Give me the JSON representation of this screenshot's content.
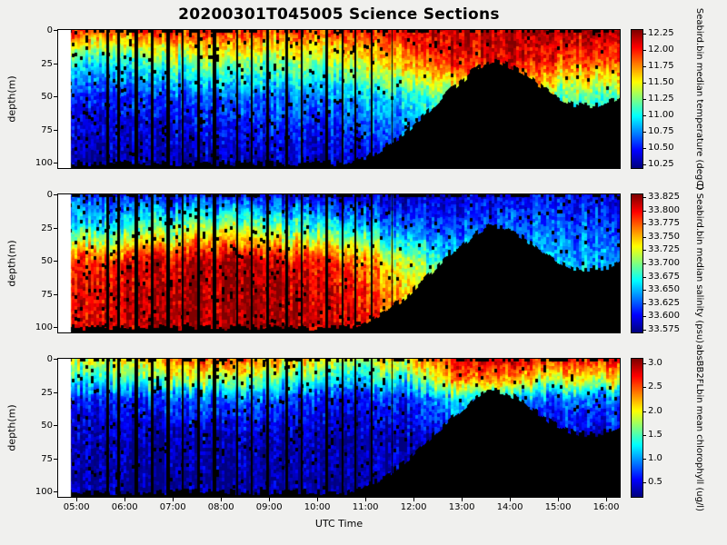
{
  "title": "20200301T045005 Science Sections",
  "axes": {
    "xlabel": "UTC Time",
    "ylabel": "depth(m)",
    "x_ticks": [
      "05:00",
      "06:00",
      "07:00",
      "08:00",
      "09:00",
      "10:00",
      "11:00",
      "12:00",
      "13:00",
      "14:00",
      "15:00",
      "16:00"
    ],
    "x_tick_hours": [
      5,
      6,
      7,
      8,
      9,
      10,
      11,
      12,
      13,
      14,
      15,
      16
    ],
    "y_ticks": [
      "0",
      "25",
      "50",
      "75",
      "100"
    ],
    "t_min": 4.6,
    "t_max": 16.3,
    "t_data_start": 4.85,
    "depth_max": 104
  },
  "colors": {
    "background": "#f0f0ee",
    "mask": "#000000",
    "frame": "#000000"
  },
  "chart_data": [
    {
      "type": "heatmap",
      "name": "temperature",
      "colorbar_label": "Seabird.bin median temperature (degC)",
      "colorbar_ticks": [
        "12.25",
        "12.00",
        "11.75",
        "11.50",
        "11.25",
        "11.00",
        "10.75",
        "10.50",
        "10.25"
      ],
      "units": "degC",
      "vmin": 10.2,
      "vmax": 12.3,
      "x_hours": [
        5,
        6,
        7,
        8,
        9,
        10,
        11,
        12,
        13,
        14,
        15,
        16
      ],
      "depths": [
        0,
        25,
        50,
        75,
        100
      ],
      "values": [
        [
          11.9,
          11.9,
          12.0,
          12.0,
          11.9,
          12.0,
          12.0,
          12.1,
          12.2,
          12.2,
          12.2,
          12.2
        ],
        [
          10.9,
          11.0,
          11.2,
          11.3,
          11.2,
          11.3,
          11.5,
          11.7,
          12.0,
          12.1,
          11.9,
          11.8
        ],
        [
          10.5,
          10.55,
          10.6,
          10.7,
          10.7,
          10.75,
          10.9,
          11.0,
          11.2,
          11.3,
          11.2,
          11.1
        ],
        [
          10.35,
          10.4,
          10.4,
          10.45,
          10.5,
          10.5,
          10.6,
          10.7,
          10.8,
          10.8,
          10.8,
          10.8
        ],
        [
          10.25,
          10.3,
          10.3,
          10.3,
          10.35,
          10.35,
          10.4,
          10.5,
          10.6,
          10.6,
          10.6,
          10.6
        ]
      ]
    },
    {
      "type": "heatmap",
      "name": "salinity",
      "colorbar_label": "D Seabird.bin median salinity (psu)",
      "colorbar_ticks": [
        "33.825",
        "33.800",
        "33.775",
        "33.750",
        "33.725",
        "33.700",
        "33.675",
        "33.650",
        "33.625",
        "33.600",
        "33.575"
      ],
      "units": "psu",
      "vmin": 33.57,
      "vmax": 33.83,
      "x_hours": [
        5,
        6,
        7,
        8,
        9,
        10,
        11,
        12,
        13,
        14,
        15,
        16
      ],
      "depths": [
        0,
        25,
        50,
        75,
        100
      ],
      "values": [
        [
          33.62,
          33.61,
          33.6,
          33.6,
          33.6,
          33.59,
          33.59,
          33.58,
          33.59,
          33.6,
          33.6,
          33.6
        ],
        [
          33.66,
          33.68,
          33.7,
          33.72,
          33.7,
          33.68,
          33.65,
          33.62,
          33.62,
          33.63,
          33.63,
          33.62
        ],
        [
          33.78,
          33.8,
          33.81,
          33.82,
          33.81,
          33.8,
          33.76,
          33.7,
          33.66,
          33.66,
          33.65,
          33.64
        ],
        [
          33.8,
          33.81,
          33.82,
          33.82,
          33.82,
          33.81,
          33.79,
          33.74,
          33.7,
          33.68,
          33.67,
          33.66
        ],
        [
          33.8,
          33.81,
          33.82,
          33.82,
          33.82,
          33.81,
          33.8,
          33.76,
          33.72,
          33.7,
          33.68,
          33.67
        ]
      ]
    },
    {
      "type": "heatmap",
      "name": "chlorophyll",
      "colorbar_label": "absBB2FLbin mean chlorophyll (ug/l)",
      "colorbar_ticks": [
        "3.0",
        "2.5",
        "2.0",
        "1.5",
        "1.0",
        "0.5"
      ],
      "units": "ug/l",
      "vmin": 0.2,
      "vmax": 3.1,
      "x_hours": [
        5,
        6,
        7,
        8,
        9,
        10,
        11,
        12,
        13,
        14,
        15,
        16
      ],
      "depths": [
        0,
        15,
        30,
        60,
        100
      ],
      "values": [
        [
          1.8,
          2.0,
          2.4,
          2.6,
          2.2,
          2.0,
          1.8,
          2.2,
          2.8,
          2.9,
          2.6,
          2.8
        ],
        [
          1.2,
          1.4,
          1.8,
          1.9,
          1.5,
          1.3,
          1.2,
          1.5,
          2.4,
          2.3,
          1.8,
          2.0
        ],
        [
          0.5,
          0.6,
          0.8,
          0.9,
          0.7,
          0.6,
          0.55,
          0.7,
          1.2,
          1.0,
          0.8,
          0.9
        ],
        [
          0.3,
          0.3,
          0.35,
          0.35,
          0.3,
          0.3,
          0.3,
          0.35,
          0.5,
          0.45,
          0.4,
          0.4
        ],
        [
          0.25,
          0.25,
          0.25,
          0.25,
          0.25,
          0.25,
          0.3,
          0.3,
          0.35,
          0.35,
          0.35,
          0.35
        ]
      ]
    }
  ],
  "bottom_profile": {
    "hours": [
      4.6,
      10.6,
      11.0,
      11.4,
      11.8,
      12.2,
      12.6,
      13.0,
      13.3,
      13.6,
      13.9,
      14.2,
      14.5,
      14.9,
      15.3,
      15.7,
      16.3
    ],
    "depths": [
      100,
      100,
      96,
      88,
      78,
      64,
      50,
      38,
      28,
      23,
      25,
      30,
      38,
      48,
      55,
      57,
      52
    ]
  },
  "gaps": {
    "hours": [
      5.62,
      5.85,
      6.22,
      6.55,
      6.88,
      7.18,
      7.52,
      7.85,
      8.32,
      8.62,
      8.95,
      9.35,
      9.67,
      10.18,
      10.52,
      10.78,
      11.12,
      11.55
    ],
    "widths": [
      0.05,
      0.04,
      0.06,
      0.04,
      0.07,
      0.04,
      0.05,
      0.08,
      0.05,
      0.04,
      0.06,
      0.05,
      0.04,
      0.06,
      0.04,
      0.05,
      0.04,
      0.03
    ]
  }
}
